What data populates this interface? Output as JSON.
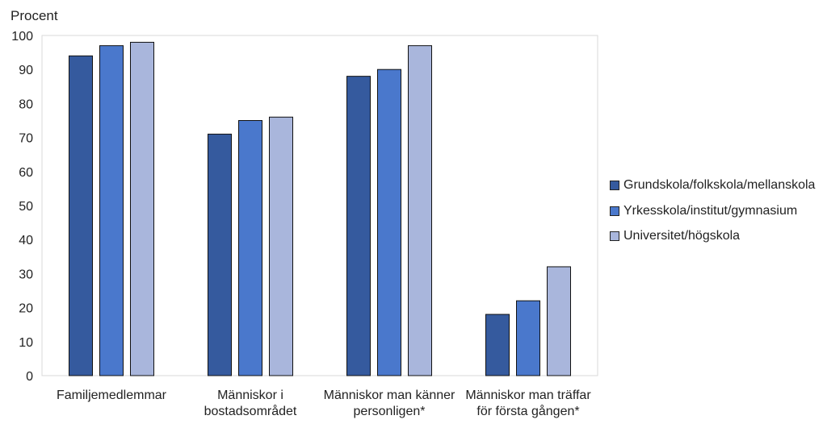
{
  "chart_data": {
    "type": "bar",
    "ylabel": "Procent",
    "ylim": [
      0,
      100
    ],
    "yticks": [
      "0",
      "10",
      "20",
      "30",
      "40",
      "50",
      "60",
      "70",
      "80",
      "90",
      "100"
    ],
    "categories": [
      [
        "Familjemedlemmar"
      ],
      [
        "Människor i",
        "bostadsområdet"
      ],
      [
        "Människor man känner",
        "personligen*"
      ],
      [
        "Människor man träffar",
        "för första gången*"
      ]
    ],
    "series": [
      {
        "name": "Grundskola/folkskola/mellanskola",
        "color": "#355a9e",
        "values": [
          94,
          71,
          88,
          18
        ]
      },
      {
        "name": "Yrkesskola/institut/gymnasium",
        "color": "#4a78cc",
        "values": [
          97,
          75,
          90,
          22
        ]
      },
      {
        "name": "Universitet/högskola",
        "color": "#a9b6dc",
        "values": [
          98,
          76,
          97,
          32
        ]
      }
    ],
    "grid": false,
    "legend_position": "right"
  }
}
